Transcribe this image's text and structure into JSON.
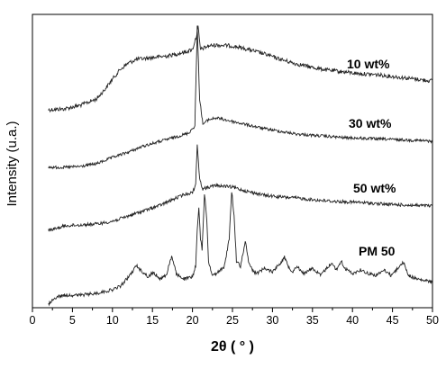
{
  "chart_data": {
    "type": "line",
    "title": "",
    "xlabel": "2θ ( ° )",
    "ylabel": "Intensity (u.a.)",
    "xlim": [
      0,
      50
    ],
    "x_ticks": [
      0,
      5,
      10,
      15,
      20,
      25,
      30,
      35,
      40,
      45,
      50
    ],
    "y_ticks": [],
    "grid": false,
    "legend": "labels placed at the right end of each curve",
    "series": [
      {
        "name": "10 wt%",
        "points": [
          [
            2,
            122
          ],
          [
            4,
            121
          ],
          [
            6,
            117
          ],
          [
            8,
            110
          ],
          [
            9,
            100
          ],
          [
            10,
            88
          ],
          [
            11,
            77
          ],
          [
            12,
            70
          ],
          [
            13,
            66
          ],
          [
            15,
            64
          ],
          [
            17,
            62
          ],
          [
            18,
            60
          ],
          [
            19,
            58
          ],
          [
            20,
            55
          ],
          [
            20.5,
            40
          ],
          [
            20.7,
            30
          ],
          [
            21,
            55
          ],
          [
            22,
            51
          ],
          [
            23,
            50
          ],
          [
            25,
            51
          ],
          [
            27,
            55
          ],
          [
            29,
            60
          ],
          [
            31,
            66
          ],
          [
            33,
            71
          ],
          [
            35,
            75
          ],
          [
            37,
            78
          ],
          [
            39,
            80
          ],
          [
            41,
            82
          ],
          [
            43,
            83
          ],
          [
            45,
            85
          ],
          [
            47,
            87
          ],
          [
            49,
            89
          ],
          [
            50,
            90
          ]
        ],
        "noise": 2.2
      },
      {
        "name": "30 wt%",
        "points": [
          [
            2,
            186
          ],
          [
            4,
            186
          ],
          [
            6,
            185
          ],
          [
            8,
            182
          ],
          [
            10,
            175
          ],
          [
            12,
            169
          ],
          [
            14,
            162
          ],
          [
            16,
            157
          ],
          [
            18,
            152
          ],
          [
            19.5,
            148
          ],
          [
            20.3,
            140
          ],
          [
            20.6,
            30
          ],
          [
            20.9,
            110
          ],
          [
            21.3,
            138
          ],
          [
            22,
            133
          ],
          [
            23,
            131
          ],
          [
            25,
            135
          ],
          [
            27,
            139
          ],
          [
            29,
            143
          ],
          [
            31,
            146
          ],
          [
            33,
            149
          ],
          [
            36,
            151
          ],
          [
            39,
            153
          ],
          [
            42,
            154
          ],
          [
            45,
            155
          ],
          [
            48,
            156
          ],
          [
            50,
            157
          ]
        ],
        "noise": 1.6
      },
      {
        "name": "50 wt%",
        "points": [
          [
            2,
            256
          ],
          [
            3,
            254
          ],
          [
            4,
            251
          ],
          [
            6,
            250
          ],
          [
            8,
            249
          ],
          [
            10,
            246
          ],
          [
            12,
            240
          ],
          [
            14,
            234
          ],
          [
            16,
            228
          ],
          [
            18,
            220
          ],
          [
            19,
            216
          ],
          [
            20,
            214
          ],
          [
            20.4,
            205
          ],
          [
            20.6,
            160
          ],
          [
            20.9,
            200
          ],
          [
            21.3,
            210
          ],
          [
            22,
            208
          ],
          [
            23,
            206
          ],
          [
            25,
            208
          ],
          [
            27,
            213
          ],
          [
            29,
            217
          ],
          [
            31,
            219
          ],
          [
            33,
            220
          ],
          [
            35,
            222
          ],
          [
            38,
            224
          ],
          [
            41,
            225
          ],
          [
            44,
            227
          ],
          [
            47,
            228
          ],
          [
            50,
            229
          ]
        ],
        "noise": 1.8
      },
      {
        "name": "PM 50",
        "points": [
          [
            2,
            338
          ],
          [
            3,
            330
          ],
          [
            4,
            328
          ],
          [
            6,
            328
          ],
          [
            8,
            326
          ],
          [
            10,
            322
          ],
          [
            11,
            318
          ],
          [
            12,
            308
          ],
          [
            12.5,
            302
          ],
          [
            13,
            295
          ],
          [
            13.5,
            300
          ],
          [
            14,
            304
          ],
          [
            14.5,
            308
          ],
          [
            15,
            303
          ],
          [
            15.5,
            306
          ],
          [
            16,
            310
          ],
          [
            16.8,
            305
          ],
          [
            17,
            296
          ],
          [
            17.4,
            285
          ],
          [
            17.8,
            298
          ],
          [
            18,
            305
          ],
          [
            19,
            310
          ],
          [
            20,
            308
          ],
          [
            20.4,
            295
          ],
          [
            20.6,
            255
          ],
          [
            20.8,
            232
          ],
          [
            21,
            265
          ],
          [
            21.2,
            278
          ],
          [
            21.5,
            215
          ],
          [
            21.8,
            245
          ],
          [
            22,
            290
          ],
          [
            22.5,
            306
          ],
          [
            23,
            304
          ],
          [
            24,
            296
          ],
          [
            24.6,
            265
          ],
          [
            24.9,
            212
          ],
          [
            25.2,
            240
          ],
          [
            25.5,
            290
          ],
          [
            26,
            296
          ],
          [
            26.6,
            268
          ],
          [
            27,
            290
          ],
          [
            27.5,
            300
          ],
          [
            28,
            304
          ],
          [
            29,
            298
          ],
          [
            30,
            302
          ],
          [
            31,
            292
          ],
          [
            31.5,
            286
          ],
          [
            32,
            296
          ],
          [
            32.5,
            302
          ],
          [
            33,
            296
          ],
          [
            34,
            304
          ],
          [
            35,
            298
          ],
          [
            35.5,
            302
          ],
          [
            36,
            306
          ],
          [
            37,
            296
          ],
          [
            37.4,
            292
          ],
          [
            38,
            300
          ],
          [
            38.6,
            290
          ],
          [
            39,
            298
          ],
          [
            40,
            304
          ],
          [
            41,
            300
          ],
          [
            42,
            304
          ],
          [
            43,
            306
          ],
          [
            44,
            300
          ],
          [
            44.8,
            306
          ],
          [
            45.5,
            300
          ],
          [
            46,
            294
          ],
          [
            46.4,
            292
          ],
          [
            47,
            306
          ],
          [
            48,
            310
          ],
          [
            49,
            312
          ],
          [
            50,
            313
          ]
        ],
        "noise": 1.8
      }
    ]
  }
}
